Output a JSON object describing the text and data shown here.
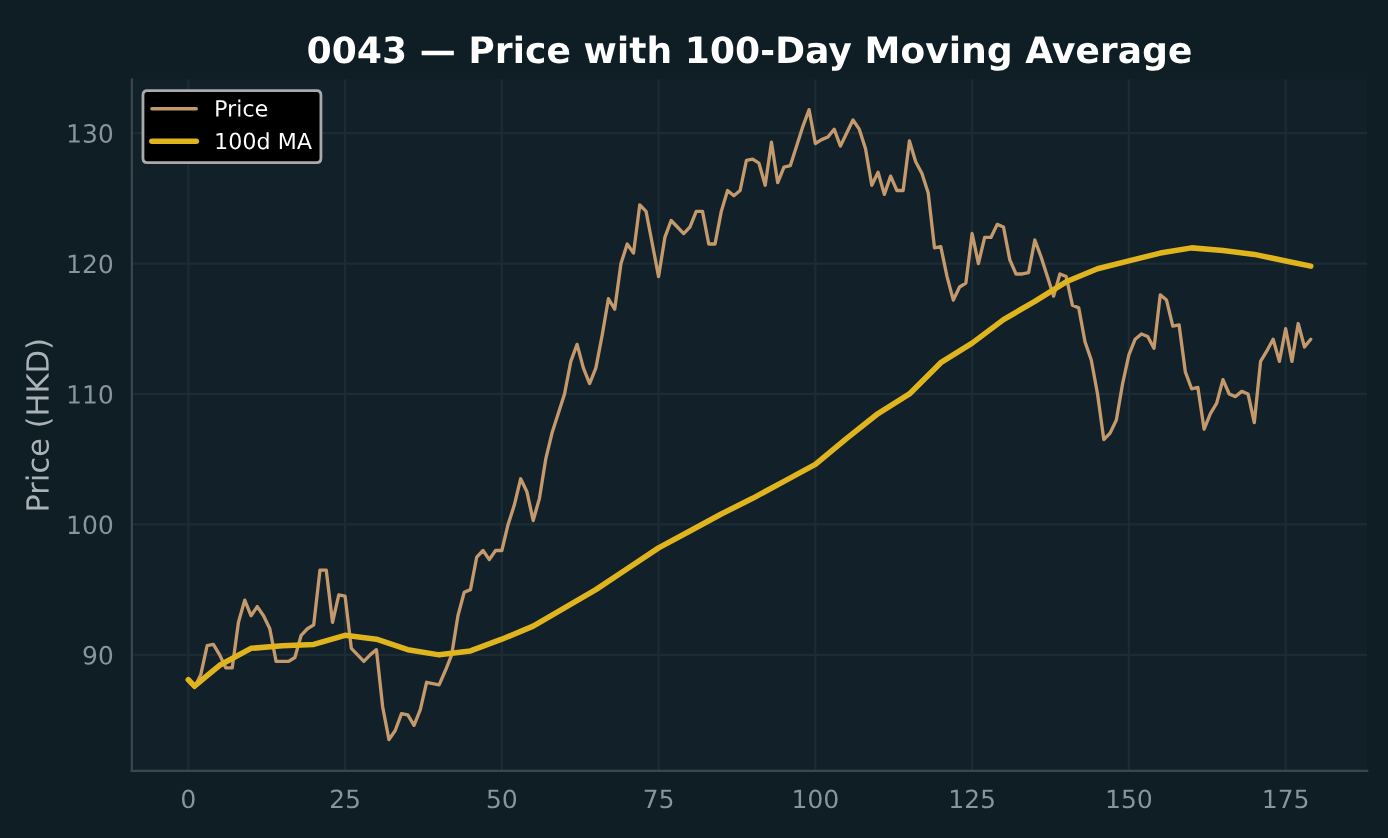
{
  "chart_data": {
    "type": "line",
    "title": "0043 — Price with 100-Day Moving Average",
    "ylabel": "Price (HKD)",
    "xlim": [
      -9,
      188
    ],
    "xticks": [
      0,
      25,
      50,
      75,
      100,
      125,
      150,
      175
    ],
    "ylim": [
      81.1,
      134.1
    ],
    "yticks": [
      90,
      100,
      110,
      120,
      130
    ],
    "grid": true,
    "legend": "top left",
    "series": [
      {
        "name": "Price",
        "color": "#c49a6c",
        "x": [
          0,
          1,
          2,
          3,
          4,
          5,
          6,
          7,
          8,
          9,
          10,
          11,
          12,
          13,
          14,
          15,
          16,
          17,
          18,
          19,
          20,
          21,
          22,
          23,
          24,
          25,
          26,
          27,
          28,
          29,
          30,
          31,
          32,
          33,
          34,
          35,
          36,
          37,
          38,
          39,
          40,
          41,
          42,
          43,
          44,
          45,
          46,
          47,
          48,
          49,
          50,
          51,
          52,
          53,
          54,
          55,
          56,
          57,
          58,
          59,
          60,
          61,
          62,
          63,
          64,
          65,
          66,
          67,
          68,
          69,
          70,
          71,
          72,
          73,
          74,
          75,
          76,
          77,
          78,
          79,
          80,
          81,
          82,
          83,
          84,
          85,
          86,
          87,
          88,
          89,
          90,
          91,
          92,
          93,
          94,
          95,
          96,
          97,
          98,
          99,
          100,
          101,
          102,
          103,
          104,
          105,
          106,
          107,
          108,
          109,
          110,
          111,
          112,
          113,
          114,
          115,
          116,
          117,
          118,
          119,
          120,
          121,
          122,
          123,
          124,
          125,
          126,
          127,
          128,
          129,
          130,
          131,
          132,
          133,
          134,
          135,
          136,
          137,
          138,
          139,
          140,
          141,
          142,
          143,
          144,
          145,
          146,
          147,
          148,
          149,
          150,
          151,
          152,
          153,
          154,
          155,
          156,
          157,
          158,
          159,
          160,
          161,
          162,
          163,
          164,
          165,
          166,
          167,
          168,
          169,
          170,
          171,
          172,
          173,
          174,
          175,
          176,
          177,
          178,
          179
        ],
        "values": [
          88,
          87.5,
          88.5,
          90.7,
          90.8,
          90,
          89,
          89,
          92.5,
          94.2,
          93,
          93.7,
          93,
          92,
          89.5,
          89.5,
          89.5,
          89.8,
          91.5,
          92,
          92.3,
          96.5,
          96.5,
          92.5,
          94.6,
          94.5,
          90.5,
          90,
          89.5,
          90,
          90.4,
          86,
          83.5,
          84.2,
          85.5,
          85.4,
          84.6,
          85.8,
          87.9,
          87.8,
          87.7,
          88.8,
          90,
          93,
          94.8,
          95,
          97.5,
          98,
          97.3,
          98,
          98,
          100,
          101.5,
          103.5,
          102.5,
          100.3,
          102,
          105,
          107,
          108.5,
          110,
          112.5,
          113.8,
          112,
          110.8,
          112,
          114.5,
          117.3,
          116.5,
          120,
          121.5,
          120.8,
          124.5,
          124,
          121.5,
          119,
          122,
          123.3,
          122.8,
          122.3,
          122.8,
          124,
          124,
          121.5,
          121.5,
          124,
          125.6,
          125.2,
          125.6,
          127.9,
          128,
          127.7,
          126,
          129.3,
          126.2,
          127.4,
          127.5,
          129,
          130.5,
          131.8,
          129.2,
          129.5,
          129.7,
          130.3,
          129,
          130,
          131,
          130.3,
          128.8,
          126,
          127,
          125.3,
          126.7,
          125.6,
          125.6,
          129.4,
          127.8,
          126.9,
          125.4,
          121.2,
          121.3,
          119,
          117.2,
          118.2,
          118.5,
          122.3,
          120,
          122,
          122,
          123,
          122.8,
          120.3,
          119.2,
          119.2,
          119.3,
          121.8,
          120.5,
          119,
          117.5,
          119.2,
          119,
          116.8,
          116.6,
          114,
          112.6,
          110,
          106.5,
          107,
          108,
          110.8,
          113,
          114.2,
          114.6,
          114.4,
          113.5,
          117.6,
          117.2,
          115.2,
          115.3,
          111.7,
          110.4,
          110.5,
          107.3,
          108.5,
          109.3,
          111.1,
          110,
          109.8,
          110.2,
          110,
          107.8,
          112.5,
          113.3,
          114.2,
          112.5,
          115,
          112.5,
          115.4,
          113.6,
          114.2
        ]
      },
      {
        "name": "100d MA",
        "color": "#e0b41c",
        "x": [
          0,
          1,
          3,
          5,
          10,
          15,
          20,
          25,
          30,
          35,
          40,
          45,
          50,
          55,
          60,
          65,
          70,
          75,
          80,
          85,
          90,
          95,
          100,
          105,
          110,
          115,
          120,
          125,
          130,
          135,
          140,
          145,
          150,
          155,
          160,
          165,
          170,
          175,
          179
        ],
        "values": [
          88.1,
          87.6,
          88.4,
          89.2,
          90.5,
          90.7,
          90.8,
          91.5,
          91.2,
          90.4,
          90,
          90.3,
          91.2,
          92.2,
          93.6,
          95,
          96.6,
          98.2,
          99.5,
          100.8,
          102,
          103.3,
          104.6,
          106.6,
          108.5,
          110,
          112.4,
          113.9,
          115.7,
          117.1,
          118.6,
          119.6,
          120.2,
          120.8,
          121.2,
          121,
          120.7,
          120.2,
          119.8
        ]
      }
    ]
  }
}
